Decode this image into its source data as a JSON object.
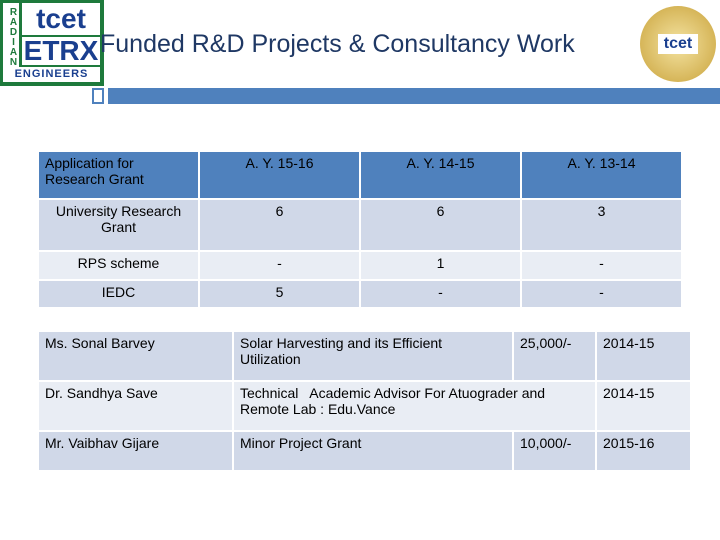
{
  "header": {
    "title": "Funded R&D Projects & Consultancy Work",
    "logo_left": {
      "top": "tcet",
      "main": "ETRX",
      "bottom": "ENGINEERS",
      "side": "RADIANT"
    },
    "logo_right": "tcet"
  },
  "grant_table": {
    "columns": [
      "Application for Research Grant",
      "A. Y. 15-16",
      "A. Y. 14-15",
      "A. Y. 13-14"
    ],
    "rows": [
      [
        "University Research Grant",
        "6",
        "6",
        "3"
      ],
      [
        "RPS scheme",
        "-",
        "1",
        "-"
      ],
      [
        "IEDC",
        "5",
        "-",
        "-"
      ]
    ]
  },
  "project_table": {
    "rows": [
      [
        "Ms. Sonal Barvey",
        "Solar Harvesting and its Efficient Utilization",
        "25,000/-",
        "2014-15"
      ],
      [
        "Dr. Sandhya Save",
        "Technical   Academic Advisor For Atuograder and Remote Lab : Edu.Vance",
        "2014-15"
      ],
      [
        "Mr. Vaibhav Gijare",
        "Minor Project Grant",
        "10,000/-",
        "2015-16"
      ]
    ]
  }
}
